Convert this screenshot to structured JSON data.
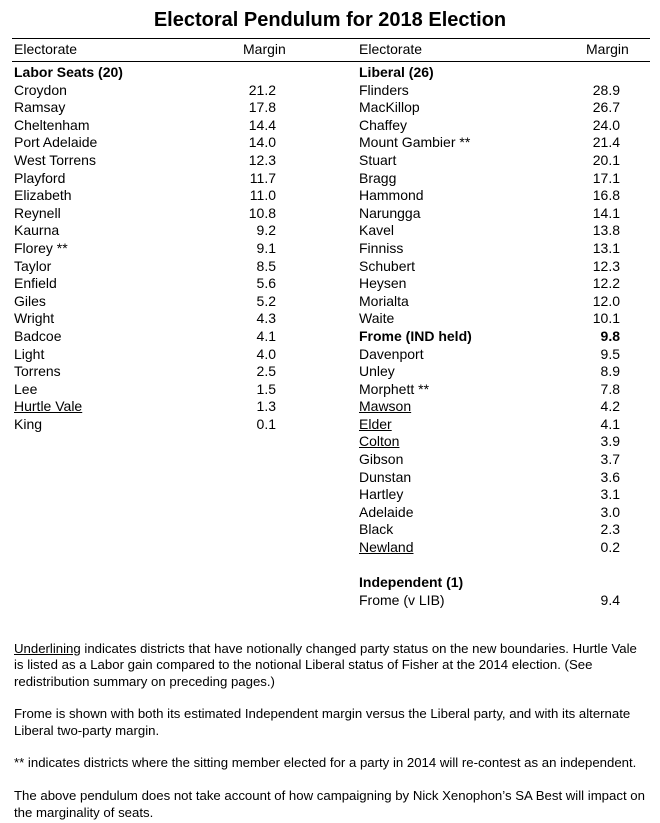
{
  "title": "Electoral Pendulum for 2018 Election",
  "headers": {
    "electorate": "Electorate",
    "margin": "Margin"
  },
  "labor": {
    "heading": "Labor Seats (20)",
    "seats": [
      [
        "Croydon",
        "21.2"
      ],
      [
        "Ramsay",
        "17.8"
      ],
      [
        "Cheltenham",
        "14.4"
      ],
      [
        "Port Adelaide",
        "14.0"
      ],
      [
        "West Torrens",
        "12.3"
      ],
      [
        "Playford",
        "11.7"
      ],
      [
        "Elizabeth",
        "11.0"
      ],
      [
        "Reynell",
        "10.8"
      ],
      [
        "Kaurna",
        "9.2"
      ],
      [
        "Florey **",
        "9.1"
      ],
      [
        "Taylor",
        "8.5"
      ],
      [
        "Enfield",
        "5.6"
      ],
      [
        "Giles",
        "5.2"
      ],
      [
        "Wright",
        "4.3"
      ],
      [
        "Badcoe",
        "4.1"
      ],
      [
        "Light",
        "4.0"
      ],
      [
        "Torrens",
        "2.5"
      ],
      [
        "Lee",
        "1.5"
      ],
      [
        "Hurtle Vale",
        "1.3",
        "u"
      ],
      [
        "King",
        "0.1"
      ]
    ]
  },
  "liberal": {
    "heading": "Liberal (26)",
    "seats": [
      [
        "Flinders",
        "28.9"
      ],
      [
        "MacKillop",
        "26.7"
      ],
      [
        "Chaffey",
        "24.0"
      ],
      [
        "Mount Gambier **",
        "21.4"
      ],
      [
        "Stuart",
        "20.1"
      ],
      [
        "Bragg",
        "17.1"
      ],
      [
        "Hammond",
        "16.8"
      ],
      [
        "Narungga",
        "14.1"
      ],
      [
        "Kavel",
        "13.8"
      ],
      [
        "Finniss",
        "13.1"
      ],
      [
        "Schubert",
        "12.3"
      ],
      [
        "Heysen",
        "12.2"
      ],
      [
        "Morialta",
        "12.0"
      ],
      [
        "Waite",
        "10.1"
      ],
      [
        "Frome (IND held)",
        "9.8",
        "b"
      ],
      [
        "Davenport",
        "9.5"
      ],
      [
        "Unley",
        "8.9"
      ],
      [
        "Morphett **",
        "7.8"
      ],
      [
        "Mawson",
        "4.2",
        "u"
      ],
      [
        "Elder",
        "4.1",
        "u"
      ],
      [
        "Colton",
        "3.9",
        "u"
      ],
      [
        "Gibson",
        "3.7"
      ],
      [
        "Dunstan",
        "3.6"
      ],
      [
        "Hartley",
        "3.1"
      ],
      [
        "Adelaide",
        "3.0"
      ],
      [
        "Black",
        "2.3"
      ],
      [
        "Newland",
        "0.2",
        "u"
      ]
    ]
  },
  "independent": {
    "heading": "Independent (1)",
    "seats": [
      [
        "Frome (v LIB)",
        "9.4"
      ]
    ]
  },
  "notes": {
    "underline_word": "Underlining",
    "note1": " indicates districts that have notionally changed party status on the new boundaries. Hurtle Vale is listed as a Labor gain compared to the notional Liberal status of Fisher at the 2014 election. (See redistribution summary on preceding pages.)",
    "note2": "Frome is shown with both its estimated Independent margin versus the Liberal party, and with its alternate Liberal two-party margin.",
    "note3": "** indicates districts where the sitting member elected for a party in 2014 will re-contest as an independent.",
    "note4": "The above pendulum does not take account of how campaigning by Nick Xenophon’s SA Best will impact on the marginality of seats."
  }
}
